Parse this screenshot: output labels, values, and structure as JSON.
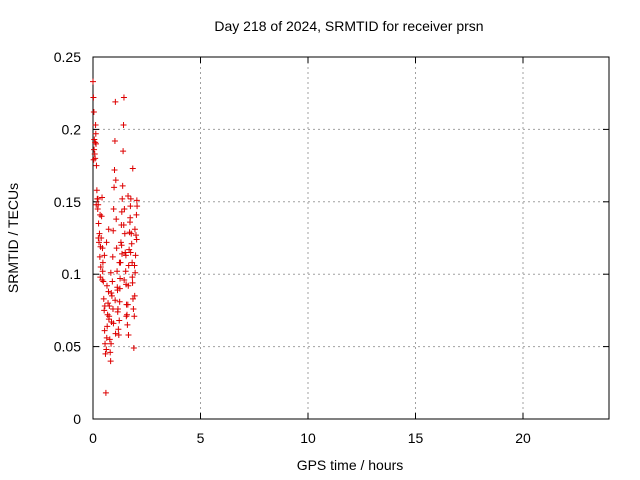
{
  "chart_data": {
    "type": "scatter",
    "title": "Day 218 of 2024, SRMTID for receiver prsn",
    "xlabel": "GPS time / hours",
    "ylabel": "SRMTID / TECUs",
    "xlim": [
      0,
      24
    ],
    "ylim": [
      0,
      0.25
    ],
    "xticks": [
      0,
      5,
      10,
      15,
      20
    ],
    "yticks": [
      0,
      0.05,
      0.1,
      0.15,
      0.2,
      0.25
    ],
    "ytick_labels": [
      "0",
      "0.05",
      "0.1",
      "0.15",
      "0.2",
      "0.25"
    ],
    "grid": true,
    "marker": "plus",
    "marker_color": "#dd0000",
    "series": [
      {
        "x": [
          0.0,
          0.02,
          0.04,
          0.06,
          0.08,
          0.1,
          0.12,
          0.14,
          0.16,
          0.18,
          0.2,
          0.22,
          0.24,
          0.26,
          0.28,
          0.3,
          0.32,
          0.34,
          0.36,
          0.38,
          0.4,
          0.42,
          0.44,
          0.46,
          0.48,
          0.5,
          0.52,
          0.54,
          0.56,
          0.58,
          0.6,
          0.62,
          0.64,
          0.66,
          0.68,
          0.7,
          0.72,
          0.74,
          0.76,
          0.78,
          0.8,
          0.82,
          0.84,
          0.86,
          0.88,
          0.9,
          0.92,
          0.94,
          0.96,
          0.98,
          1.0,
          1.02,
          1.04,
          1.06,
          1.08,
          1.1,
          1.12,
          1.14,
          1.16,
          1.18,
          1.2,
          1.22,
          1.24,
          1.26,
          1.28,
          1.3,
          1.32,
          1.34,
          1.36,
          1.38,
          1.4,
          1.42,
          1.44,
          1.46,
          1.48,
          1.5,
          1.52,
          1.54,
          1.56,
          1.58,
          1.6,
          1.62,
          1.64,
          1.66,
          1.68,
          1.7,
          1.72,
          1.74,
          1.76,
          1.78,
          1.8,
          1.82,
          1.84,
          1.86,
          1.88,
          1.9,
          1.92,
          1.94,
          1.96,
          1.98,
          2.0,
          2.02,
          2.04,
          0.05,
          0.1,
          0.15,
          0.25,
          0.35,
          0.45,
          0.55,
          0.65,
          0.75,
          0.85,
          0.95,
          1.05,
          1.15,
          1.25,
          1.35,
          1.45,
          1.55,
          1.65,
          1.75,
          1.85,
          1.95,
          2.05,
          0.03,
          0.13,
          0.23,
          0.33,
          0.43,
          0.53,
          0.63,
          0.73,
          0.83,
          0.93,
          1.03,
          1.13,
          1.23,
          1.33,
          1.43,
          1.53,
          1.63,
          1.73,
          1.83,
          1.93,
          2.03
        ],
        "y": [
          0.233,
          0.222,
          0.212,
          0.193,
          0.183,
          0.18,
          0.203,
          0.19,
          0.175,
          0.158,
          0.152,
          0.145,
          0.148,
          0.135,
          0.122,
          0.128,
          0.112,
          0.098,
          0.105,
          0.125,
          0.14,
          0.153,
          0.118,
          0.108,
          0.095,
          0.083,
          0.075,
          0.061,
          0.052,
          0.045,
          0.018,
          0.048,
          0.056,
          0.064,
          0.072,
          0.08,
          0.088,
          0.069,
          0.078,
          0.055,
          0.046,
          0.04,
          0.052,
          0.067,
          0.085,
          0.095,
          0.112,
          0.13,
          0.145,
          0.16,
          0.172,
          0.192,
          0.219,
          0.165,
          0.138,
          0.118,
          0.102,
          0.089,
          0.076,
          0.062,
          0.058,
          0.068,
          0.081,
          0.097,
          0.108,
          0.122,
          0.134,
          0.143,
          0.152,
          0.161,
          0.185,
          0.203,
          0.222,
          0.145,
          0.128,
          0.115,
          0.102,
          0.093,
          0.079,
          0.072,
          0.065,
          0.079,
          0.092,
          0.106,
          0.117,
          0.129,
          0.136,
          0.147,
          0.152,
          0.128,
          0.121,
          0.108,
          0.094,
          0.083,
          0.076,
          0.049,
          0.071,
          0.085,
          0.101,
          0.113,
          0.127,
          0.141,
          0.151,
          0.186,
          0.191,
          0.148,
          0.125,
          0.119,
          0.102,
          0.078,
          0.092,
          0.071,
          0.087,
          0.066,
          0.059,
          0.074,
          0.09,
          0.114,
          0.096,
          0.071,
          0.058,
          0.115,
          0.173,
          0.131,
          0.147,
          0.179,
          0.197,
          0.152,
          0.141,
          0.096,
          0.113,
          0.122,
          0.131,
          0.101,
          0.076,
          0.082,
          0.091,
          0.108,
          0.12,
          0.134,
          0.113,
          0.154,
          0.139,
          0.098,
          0.106,
          0.124
        ]
      }
    ]
  }
}
